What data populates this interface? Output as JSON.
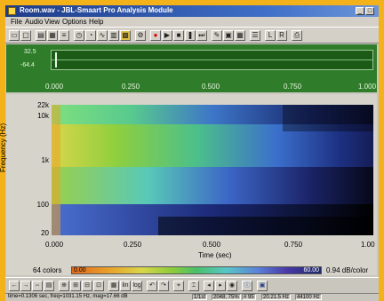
{
  "window": {
    "title": "Room.wav - JBL-Smaart Pro Analysis Module",
    "controls": [
      "_",
      "□"
    ]
  },
  "menu": [
    "File",
    "Audio",
    "View",
    "Options",
    "Help"
  ],
  "overview": {
    "top_label": "32.5",
    "bottom_label": "-64.4",
    "x_ticks": [
      "0.000",
      "0.250",
      "0.500",
      "0.750",
      "1.000"
    ]
  },
  "spectrogram": {
    "ylabel": "Frequency (Hz)",
    "xlabel": "Time (sec)",
    "y_ticks": [
      "22k",
      "10k",
      "1k",
      "100",
      "20"
    ],
    "x_ticks": [
      "0.000",
      "0.250",
      "0.500",
      "0.750",
      "1.00"
    ]
  },
  "legend": {
    "colors_label": "64 colors",
    "low_value": "0.00",
    "high_value": "60.00",
    "scale_label": "0.94 dB/color"
  },
  "controls": {
    "lin_label": "lin",
    "log_label": "log"
  },
  "status": {
    "readout": "time=0.1306 sec, freq=1031.15 Hz, mag=17.66 dB",
    "resolution": "1/1st",
    "fft": "2048, 75%",
    "percent": "# 95",
    "freq_res": "20.21.5 Hz",
    "rate": "44100 Hz"
  },
  "colors": {
    "accent_orange": "#f4b21a",
    "overview_green": "#2f7d2a",
    "title_blue": "#1f3c88"
  }
}
